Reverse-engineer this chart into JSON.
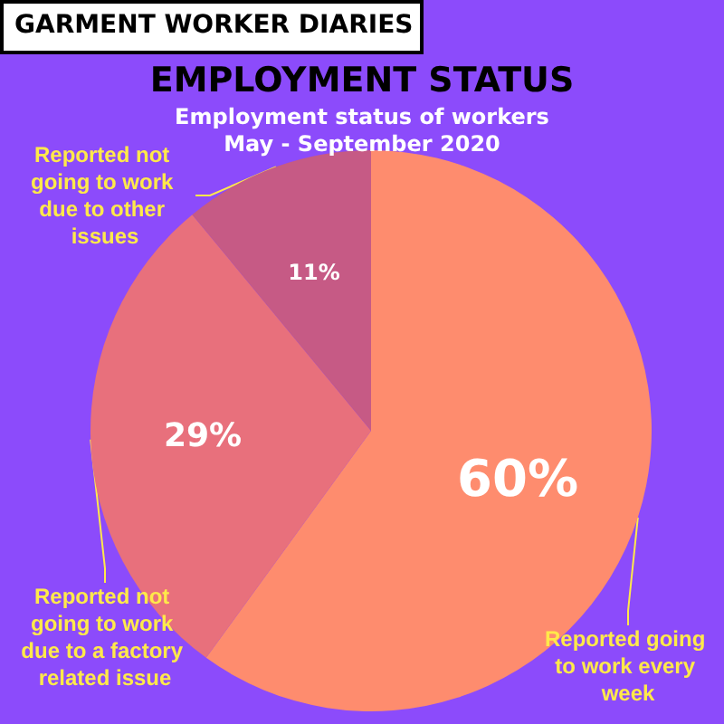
{
  "chart_data": {
    "type": "pie",
    "title": "EMPLOYMENT STATUS",
    "subtitle": "Employment status of workers\nMay - September 2020",
    "annotations": [
      "GARMENT WORKER DIARIES"
    ],
    "categories": [
      "Reported going to work every week",
      "Reported not going to work due to a factory related issue",
      "Reported not going to work due to other issues"
    ],
    "values": [
      60,
      29,
      11
    ],
    "value_labels": [
      "60%",
      "29%",
      "11%"
    ],
    "colors": [
      "#fe8c6e",
      "#e8707c",
      "#c65a85"
    ],
    "legend": false
  }
}
